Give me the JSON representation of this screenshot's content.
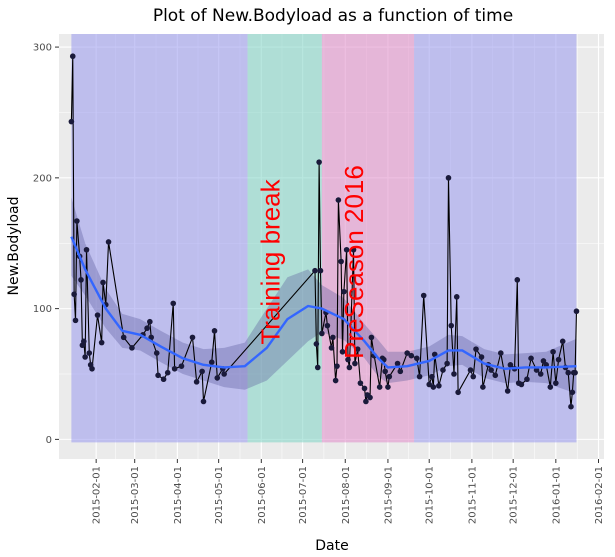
{
  "chart_data": {
    "type": "line",
    "title": "Plot of  New.Bodyload  as a function of time",
    "xlabel": "Date",
    "ylabel": "New.Bodyload",
    "x_type": "date",
    "xlim": [
      "2015-01-05",
      "2016-02-05"
    ],
    "ylim": [
      -15,
      310
    ],
    "x_ticks": [
      "2015-02-01",
      "2015-03-01",
      "2015-04-01",
      "2015-05-01",
      "2015-06-01",
      "2015-07-01",
      "2015-08-01",
      "2015-09-01",
      "2015-10-01",
      "2015-11-01",
      "2015-12-01",
      "2016-01-01",
      "2016-02-01"
    ],
    "y_ticks": [
      0,
      100,
      200,
      300
    ],
    "grid": true,
    "legend": "none",
    "colors": {
      "panel": "#ebebeb",
      "grid": "#ffffff",
      "points": "#1a1a3a",
      "line": "#000000",
      "smooth": "#3366ff",
      "ribbon": "#5a5a9a",
      "phase_label": "#ff0000"
    },
    "phases": [
      {
        "label": "",
        "start": "2015-01-14",
        "end": "2015-05-22",
        "color": "#9999ee"
      },
      {
        "label": "Training break",
        "start": "2015-05-22",
        "end": "2015-07-15",
        "color": "#7ed4c4"
      },
      {
        "label": "PreSeason 2016",
        "start": "2015-07-15",
        "end": "2015-09-20",
        "color": "#e08ac8"
      },
      {
        "label": "",
        "start": "2015-09-20",
        "end": "2016-01-16",
        "color": "#9999ee"
      }
    ],
    "series": [
      {
        "points": [
          {
            "x": "2015-01-14",
            "y": 243
          },
          {
            "x": "2015-01-15",
            "y": 293
          },
          {
            "x": "2015-01-16",
            "y": 111
          },
          {
            "x": "2015-01-17",
            "y": 91
          },
          {
            "x": "2015-01-18",
            "y": 167
          },
          {
            "x": "2015-01-20",
            "y": 140
          },
          {
            "x": "2015-01-21",
            "y": 122
          },
          {
            "x": "2015-01-22",
            "y": 72
          },
          {
            "x": "2015-01-23",
            "y": 75
          },
          {
            "x": "2015-01-24",
            "y": 63
          },
          {
            "x": "2015-01-25",
            "y": 145
          },
          {
            "x": "2015-01-27",
            "y": 66
          },
          {
            "x": "2015-01-28",
            "y": 57
          },
          {
            "x": "2015-01-29",
            "y": 54
          },
          {
            "x": "2015-02-02",
            "y": 95
          },
          {
            "x": "2015-02-05",
            "y": 74
          },
          {
            "x": "2015-02-06",
            "y": 120
          },
          {
            "x": "2015-02-08",
            "y": 103
          },
          {
            "x": "2015-02-10",
            "y": 151
          },
          {
            "x": "2015-02-21",
            "y": 78
          },
          {
            "x": "2015-02-27",
            "y": 70
          },
          {
            "x": "2015-03-07",
            "y": 80
          },
          {
            "x": "2015-03-10",
            "y": 85
          },
          {
            "x": "2015-03-12",
            "y": 90
          },
          {
            "x": "2015-03-13",
            "y": 78
          },
          {
            "x": "2015-03-17",
            "y": 66
          },
          {
            "x": "2015-03-18",
            "y": 49
          },
          {
            "x": "2015-03-22",
            "y": 46
          },
          {
            "x": "2015-03-25",
            "y": 51
          },
          {
            "x": "2015-03-29",
            "y": 104
          },
          {
            "x": "2015-03-30",
            "y": 54
          },
          {
            "x": "2015-04-04",
            "y": 56
          },
          {
            "x": "2015-04-12",
            "y": 78
          },
          {
            "x": "2015-04-15",
            "y": 44
          },
          {
            "x": "2015-04-19",
            "y": 52
          },
          {
            "x": "2015-04-20",
            "y": 29
          },
          {
            "x": "2015-04-26",
            "y": 59
          },
          {
            "x": "2015-04-28",
            "y": 83
          },
          {
            "x": "2015-04-30",
            "y": 47
          },
          {
            "x": "2015-05-04",
            "y": 54
          },
          {
            "x": "2015-05-05",
            "y": 50
          },
          {
            "x": "2015-07-10",
            "y": 129
          },
          {
            "x": "2015-07-11",
            "y": 73
          },
          {
            "x": "2015-07-12",
            "y": 55
          },
          {
            "x": "2015-07-13",
            "y": 212
          },
          {
            "x": "2015-07-14",
            "y": 129
          },
          {
            "x": "2015-07-15",
            "y": 81
          },
          {
            "x": "2015-07-18",
            "y": 97
          },
          {
            "x": "2015-07-19",
            "y": 87
          },
          {
            "x": "2015-07-22",
            "y": 70
          },
          {
            "x": "2015-07-23",
            "y": 78
          },
          {
            "x": "2015-07-25",
            "y": 45
          },
          {
            "x": "2015-07-26",
            "y": 56
          },
          {
            "x": "2015-07-27",
            "y": 183
          },
          {
            "x": "2015-07-29",
            "y": 136
          },
          {
            "x": "2015-07-30",
            "y": 67
          },
          {
            "x": "2015-07-31",
            "y": 113
          },
          {
            "x": "2015-08-02",
            "y": 145
          },
          {
            "x": "2015-08-03",
            "y": 61
          },
          {
            "x": "2015-08-04",
            "y": 55
          },
          {
            "x": "2015-08-07",
            "y": 145
          },
          {
            "x": "2015-08-08",
            "y": 58
          },
          {
            "x": "2015-08-10",
            "y": 69
          },
          {
            "x": "2015-08-12",
            "y": 43
          },
          {
            "x": "2015-08-15",
            "y": 39
          },
          {
            "x": "2015-08-16",
            "y": 29
          },
          {
            "x": "2015-08-17",
            "y": 34
          },
          {
            "x": "2015-08-19",
            "y": 32
          },
          {
            "x": "2015-08-20",
            "y": 78
          },
          {
            "x": "2015-08-22",
            "y": 64
          },
          {
            "x": "2015-08-26",
            "y": 40
          },
          {
            "x": "2015-08-28",
            "y": 62
          },
          {
            "x": "2015-08-29",
            "y": 61
          },
          {
            "x": "2015-08-30",
            "y": 52
          },
          {
            "x": "2015-09-01",
            "y": 40
          },
          {
            "x": "2015-09-02",
            "y": 48
          },
          {
            "x": "2015-09-08",
            "y": 58
          },
          {
            "x": "2015-09-10",
            "y": 52
          },
          {
            "x": "2015-09-15",
            "y": 66
          },
          {
            "x": "2015-09-18",
            "y": 64
          },
          {
            "x": "2015-09-22",
            "y": 62
          },
          {
            "x": "2015-09-24",
            "y": 48
          },
          {
            "x": "2015-09-27",
            "y": 110
          },
          {
            "x": "2015-10-01",
            "y": 42
          },
          {
            "x": "2015-10-03",
            "y": 48
          },
          {
            "x": "2015-10-04",
            "y": 40
          },
          {
            "x": "2015-10-05",
            "y": 65
          },
          {
            "x": "2015-10-08",
            "y": 41
          },
          {
            "x": "2015-10-11",
            "y": 53
          },
          {
            "x": "2015-10-14",
            "y": 58
          },
          {
            "x": "2015-10-15",
            "y": 200
          },
          {
            "x": "2015-10-17",
            "y": 87
          },
          {
            "x": "2015-10-19",
            "y": 50
          },
          {
            "x": "2015-10-21",
            "y": 109
          },
          {
            "x": "2015-10-22",
            "y": 36
          },
          {
            "x": "2015-10-31",
            "y": 53
          },
          {
            "x": "2015-11-02",
            "y": 48
          },
          {
            "x": "2015-11-04",
            "y": 69
          },
          {
            "x": "2015-11-08",
            "y": 63
          },
          {
            "x": "2015-11-09",
            "y": 40
          },
          {
            "x": "2015-11-13",
            "y": 57
          },
          {
            "x": "2015-11-15",
            "y": 53
          },
          {
            "x": "2015-11-18",
            "y": 49
          },
          {
            "x": "2015-11-22",
            "y": 66
          },
          {
            "x": "2015-11-27",
            "y": 37
          },
          {
            "x": "2015-11-29",
            "y": 57
          },
          {
            "x": "2015-12-02",
            "y": 54
          },
          {
            "x": "2015-12-04",
            "y": 122
          },
          {
            "x": "2015-12-05",
            "y": 43
          },
          {
            "x": "2015-12-07",
            "y": 42
          },
          {
            "x": "2015-12-11",
            "y": 46
          },
          {
            "x": "2015-12-14",
            "y": 62
          },
          {
            "x": "2015-12-18",
            "y": 53
          },
          {
            "x": "2015-12-21",
            "y": 50
          },
          {
            "x": "2015-12-23",
            "y": 60
          },
          {
            "x": "2015-12-25",
            "y": 57
          },
          {
            "x": "2015-12-28",
            "y": 40
          },
          {
            "x": "2015-12-30",
            "y": 67
          },
          {
            "x": "2016-01-01",
            "y": 43
          },
          {
            "x": "2016-01-03",
            "y": 61
          },
          {
            "x": "2016-01-06",
            "y": 75
          },
          {
            "x": "2016-01-08",
            "y": 55
          },
          {
            "x": "2016-01-10",
            "y": 51
          },
          {
            "x": "2016-01-12",
            "y": 25
          },
          {
            "x": "2016-01-13",
            "y": 36
          },
          {
            "x": "2016-01-14",
            "y": 51
          },
          {
            "x": "2016-01-15",
            "y": 51
          },
          {
            "x": "2016-01-16",
            "y": 98
          }
        ]
      }
    ],
    "smooth": {
      "method": "loess",
      "points": [
        {
          "x": "2015-01-14",
          "y": 155,
          "lo": 125,
          "hi": 185
        },
        {
          "x": "2015-01-24",
          "y": 130,
          "lo": 110,
          "hi": 150
        },
        {
          "x": "2015-02-08",
          "y": 100,
          "lo": 85,
          "hi": 115
        },
        {
          "x": "2015-02-20",
          "y": 83,
          "lo": 70,
          "hi": 96
        },
        {
          "x": "2015-03-05",
          "y": 80,
          "lo": 68,
          "hi": 92
        },
        {
          "x": "2015-03-20",
          "y": 71,
          "lo": 59,
          "hi": 83
        },
        {
          "x": "2015-04-05",
          "y": 62,
          "lo": 50,
          "hi": 74
        },
        {
          "x": "2015-04-20",
          "y": 57,
          "lo": 45,
          "hi": 69
        },
        {
          "x": "2015-05-05",
          "y": 55,
          "lo": 40,
          "hi": 70
        },
        {
          "x": "2015-05-20",
          "y": 56,
          "lo": 38,
          "hi": 74
        },
        {
          "x": "2015-06-05",
          "y": 70,
          "lo": 45,
          "hi": 100
        },
        {
          "x": "2015-06-20",
          "y": 92,
          "lo": 60,
          "hi": 124
        },
        {
          "x": "2015-07-05",
          "y": 102,
          "lo": 75,
          "hi": 130
        },
        {
          "x": "2015-07-15",
          "y": 100,
          "lo": 82,
          "hi": 118
        },
        {
          "x": "2015-07-31",
          "y": 92,
          "lo": 76,
          "hi": 108
        },
        {
          "x": "2015-08-15",
          "y": 75,
          "lo": 62,
          "hi": 88
        },
        {
          "x": "2015-08-25",
          "y": 62,
          "lo": 48,
          "hi": 76
        },
        {
          "x": "2015-09-01",
          "y": 55,
          "lo": 43,
          "hi": 67
        },
        {
          "x": "2015-09-15",
          "y": 56,
          "lo": 45,
          "hi": 67
        },
        {
          "x": "2015-10-01",
          "y": 60,
          "lo": 49,
          "hi": 71
        },
        {
          "x": "2015-10-15",
          "y": 68,
          "lo": 56,
          "hi": 80
        },
        {
          "x": "2015-10-25",
          "y": 68,
          "lo": 57,
          "hi": 79
        },
        {
          "x": "2015-11-10",
          "y": 58,
          "lo": 47,
          "hi": 69
        },
        {
          "x": "2015-11-25",
          "y": 54,
          "lo": 43,
          "hi": 65
        },
        {
          "x": "2015-12-10",
          "y": 55,
          "lo": 44,
          "hi": 66
        },
        {
          "x": "2015-12-25",
          "y": 55,
          "lo": 43,
          "hi": 67
        },
        {
          "x": "2016-01-16",
          "y": 56,
          "lo": 35,
          "hi": 77
        }
      ]
    }
  }
}
